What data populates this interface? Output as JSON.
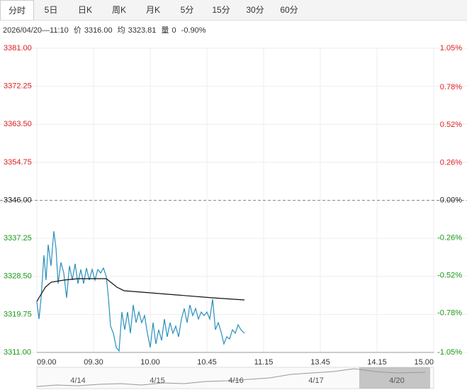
{
  "tabs": [
    "分时",
    "5日",
    "日K",
    "周K",
    "月K",
    "5分",
    "15分",
    "30分",
    "60分"
  ],
  "info": {
    "time": "2026/04/20—11:10",
    "price_label": "价",
    "price": "3316.00",
    "avg_label": "均",
    "avg": "3323.81",
    "volume_label": "量",
    "volume": "0",
    "change": "-0.90%"
  },
  "chart_data": {
    "type": "line",
    "xlim": [
      0,
      280
    ],
    "xticks": [
      {
        "value": 0,
        "label": "09.00"
      },
      {
        "value": 40,
        "label": "09.30"
      },
      {
        "value": 80,
        "label": "10.00"
      },
      {
        "value": 120,
        "label": "10.45"
      },
      {
        "value": 160,
        "label": "11.15"
      },
      {
        "value": 200,
        "label": "13.45"
      },
      {
        "value": 240,
        "label": "14.15"
      },
      {
        "value": 280,
        "label": "15.00"
      }
    ],
    "ylim": [
      3311,
      3381
    ],
    "yticks": [
      {
        "value": 3381,
        "label": "3381.00"
      },
      3372.25,
      {
        "value": 3363.5,
        "label": "3363.50"
      },
      3354.75,
      {
        "value": 3346,
        "label": "3346.00"
      },
      3337.25,
      {
        "value": 3328.5,
        "label": "3328.50"
      },
      3319.75,
      {
        "value": 3311,
        "label": "3311.00"
      }
    ],
    "y2lim": [
      -1.05,
      1.05
    ],
    "y2ticks": [
      {
        "value": 1.05,
        "label": "1.05%"
      },
      {
        "value": 0.78,
        "label": "0.78%"
      },
      {
        "value": 0.52,
        "label": "0.52%"
      },
      {
        "value": 0.26,
        "label": "0.26%"
      },
      {
        "value": 0,
        "label": "0.00%"
      },
      {
        "value": -0.26,
        "label": "-0.26%"
      },
      {
        "value": -0.52,
        "label": "-0.52%"
      },
      {
        "value": -0.78,
        "label": "-0.78%"
      },
      {
        "value": -1.05,
        "label": "-1.05%"
      }
    ],
    "grid": true,
    "up_color": "#e02020",
    "down_color": "#1a9a1a",
    "flat_color": "#222222",
    "series": [
      {
        "color": "#2a8fbd",
        "x": [
          0,
          1.5,
          3,
          5,
          6.5,
          8,
          10,
          12,
          13.5,
          15,
          17,
          19,
          21,
          23,
          25,
          27,
          29,
          31,
          33,
          35,
          37,
          39,
          41,
          43,
          45,
          47,
          49,
          50.5,
          52,
          54,
          56,
          58,
          60,
          62,
          64,
          66,
          68,
          70,
          72,
          74,
          76,
          78,
          80,
          82,
          84,
          86,
          88,
          90,
          92,
          94,
          96,
          98,
          100,
          102,
          104,
          106,
          108,
          110,
          112,
          114,
          116,
          118,
          120,
          122,
          124,
          126,
          128,
          130,
          132,
          134,
          136,
          138,
          140,
          142,
          144,
          146.5
        ],
        "values": [
          3322.75,
          3318.67,
          3323.56,
          3333.35,
          3327.64,
          3335.8,
          3330.91,
          3338.9,
          3334.99,
          3326.83,
          3331.72,
          3329.27,
          3323.56,
          3330.91,
          3327.64,
          3331.4,
          3326.83,
          3330.09,
          3326.83,
          3330.42,
          3327.64,
          3330.09,
          3327.64,
          3330.09,
          3329.27,
          3330.42,
          3328.46,
          3323.56,
          3317.04,
          3315.41,
          3312.14,
          3311.33,
          3320.3,
          3316.22,
          3320.3,
          3315.41,
          3321.93,
          3317.85,
          3320.3,
          3317.85,
          3319.48,
          3315.41,
          3312.14,
          3317.85,
          3312.96,
          3316.22,
          3313.77,
          3318.67,
          3314.59,
          3317.85,
          3315.41,
          3317.04,
          3314.59,
          3318.67,
          3321.12,
          3317.85,
          3321.93,
          3319.48,
          3321.12,
          3318.67,
          3320.3,
          3319.48,
          3320.3,
          3318.67,
          3323.24,
          3316.22,
          3317.85,
          3315.73,
          3312.96,
          3314.59,
          3314.1,
          3316.22,
          3315.41,
          3317.36,
          3316.22,
          3315.41
        ]
      },
      {
        "color": "#111111",
        "x": [
          0,
          3,
          6,
          10,
          19,
          29,
          49,
          56.5,
          61.5,
          74,
          99,
          124,
          146.5
        ],
        "values": [
          3322.75,
          3324.38,
          3326.01,
          3327.15,
          3327.64,
          3327.97,
          3327.97,
          3326.01,
          3325.2,
          3324.87,
          3324.22,
          3323.56,
          3323.07
        ]
      }
    ]
  },
  "navigator": {
    "dates": [
      "4/14",
      "4/15",
      "4/16",
      "4/17",
      "4/20"
    ]
  }
}
